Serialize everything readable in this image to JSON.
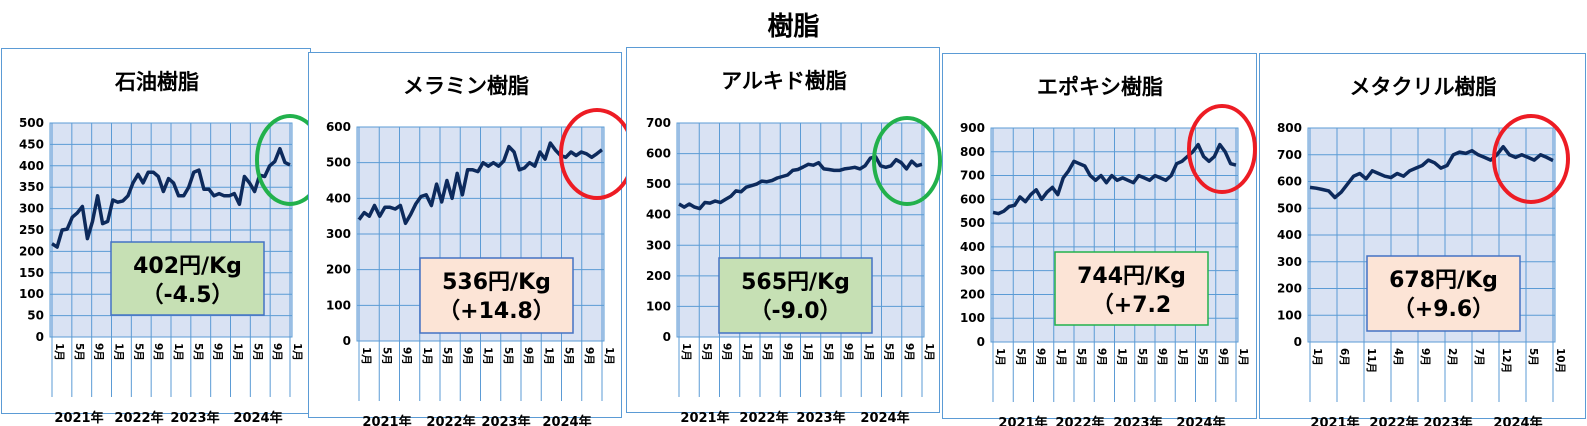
{
  "page_title": "樹脂",
  "colors": {
    "plot_bg": "#d9e2f3",
    "grid": "#5b9bd5",
    "line": "#0d2a5c",
    "green": "#22b14c",
    "red": "#ed1c24",
    "box_green": "#c6e0b4",
    "box_orange": "#fce4d6"
  },
  "chart_data": [
    {
      "type": "line",
      "title": "石油樹脂",
      "ylim": [
        0,
        500
      ],
      "yticks": [
        0,
        50,
        100,
        150,
        200,
        250,
        300,
        350,
        400,
        450,
        500
      ],
      "month_labels": [
        "1月",
        "5月",
        "9月",
        "1月",
        "5月",
        "9月",
        "1月",
        "5月",
        "9月",
        "1月",
        "5月",
        "9月",
        "1月"
      ],
      "year_labels": [
        "2021年",
        "2022年",
        "2023年",
        "2024年"
      ],
      "series": [
        {
          "values": [
            218,
            210,
            250,
            252,
            280,
            290,
            305,
            230,
            270,
            330,
            265,
            270,
            320,
            315,
            318,
            330,
            360,
            380,
            360,
            385,
            385,
            375,
            340,
            370,
            360,
            330,
            330,
            350,
            385,
            390,
            345,
            345,
            330,
            335,
            330,
            330,
            335,
            310,
            375,
            360,
            340,
            378,
            375,
            400,
            410,
            440,
            408,
            402
          ]
        }
      ],
      "price_label": "402円/Kg",
      "change_label": "（-4.5）",
      "box_style": "green",
      "circle": "green"
    },
    {
      "type": "line",
      "title": "メラミン樹脂",
      "ylim": [
        0,
        600
      ],
      "yticks": [
        0,
        100,
        200,
        300,
        400,
        500,
        600
      ],
      "month_labels": [
        "1月",
        "5月",
        "9月",
        "1月",
        "5月",
        "9月",
        "1月",
        "5月",
        "9月",
        "1月",
        "5月",
        "9月",
        "1月"
      ],
      "year_labels": [
        "2021年",
        "2022年",
        "2023年",
        "2024年"
      ],
      "series": [
        {
          "values": [
            340,
            360,
            350,
            380,
            350,
            375,
            375,
            370,
            380,
            330,
            355,
            385,
            405,
            410,
            380,
            440,
            390,
            450,
            400,
            470,
            410,
            480,
            480,
            475,
            500,
            490,
            500,
            490,
            505,
            545,
            530,
            480,
            485,
            500,
            490,
            530,
            510,
            555,
            535,
            520,
            515,
            530,
            520,
            530,
            525,
            515,
            525,
            536
          ]
        }
      ],
      "price_label": "536円/Kg",
      "change_label": "（+14.8）",
      "box_style": "orange",
      "circle": "red"
    },
    {
      "type": "line",
      "title": "アルキド樹脂",
      "ylim": [
        0,
        700
      ],
      "yticks": [
        0,
        100,
        200,
        300,
        400,
        500,
        600,
        700
      ],
      "month_labels": [
        "1月",
        "5月",
        "9月",
        "1月",
        "5月",
        "9月",
        "1月",
        "5月",
        "9月",
        "1月",
        "5月",
        "9月",
        "1月"
      ],
      "year_labels": [
        "2021年",
        "2022年",
        "2023年",
        "2024年"
      ],
      "series": [
        {
          "values": [
            435,
            425,
            435,
            425,
            420,
            440,
            438,
            445,
            440,
            450,
            460,
            478,
            475,
            490,
            495,
            500,
            510,
            508,
            512,
            520,
            525,
            530,
            545,
            548,
            556,
            565,
            562,
            570,
            550,
            548,
            545,
            545,
            550,
            552,
            555,
            550,
            560,
            585,
            590,
            560,
            555,
            560,
            580,
            570,
            550,
            575,
            560,
            565
          ]
        }
      ],
      "price_label": "565円/Kg",
      "change_label": "（-9.0）",
      "box_style": "green",
      "circle": "green"
    },
    {
      "type": "line",
      "title": "エポキシ樹脂",
      "ylim": [
        0,
        900
      ],
      "yticks": [
        0,
        100,
        200,
        300,
        400,
        500,
        600,
        700,
        800,
        900
      ],
      "month_labels": [
        "1月",
        "5月",
        "9月",
        "1月",
        "5月",
        "9月",
        "1月",
        "5月",
        "9月",
        "1月",
        "5月",
        "9月",
        "1月"
      ],
      "year_labels": [
        "2021年",
        "2022年",
        "2023年",
        "2024年"
      ],
      "series": [
        {
          "values": [
            545,
            540,
            550,
            570,
            575,
            610,
            590,
            620,
            640,
            600,
            630,
            650,
            620,
            690,
            720,
            760,
            750,
            740,
            700,
            680,
            700,
            670,
            700,
            680,
            690,
            680,
            670,
            700,
            690,
            680,
            700,
            690,
            680,
            700,
            750,
            760,
            780,
            800,
            830,
            780,
            760,
            780,
            830,
            800,
            750,
            744
          ]
        }
      ],
      "price_label": "744円/Kg",
      "change_label": "（+7.2",
      "box_style": "orange",
      "circle": "red"
    },
    {
      "type": "line",
      "title": "メタクリル樹脂",
      "ylim": [
        0,
        800
      ],
      "yticks": [
        0,
        100,
        200,
        300,
        400,
        500,
        600,
        700,
        800
      ],
      "month_labels": [
        "1月",
        "6月",
        "11月",
        "4月",
        "9月",
        "2月",
        "7月",
        "12月",
        "5月",
        "10月"
      ],
      "year_labels": [
        "2021年",
        "2022年",
        "2023年",
        "2024年"
      ],
      "series": [
        {
          "values": [
            578,
            575,
            570,
            565,
            540,
            560,
            590,
            620,
            630,
            610,
            640,
            630,
            620,
            615,
            630,
            620,
            640,
            650,
            660,
            680,
            670,
            650,
            660,
            700,
            710,
            705,
            715,
            700,
            690,
            680,
            700,
            730,
            700,
            690,
            700,
            690,
            680,
            700,
            690,
            678
          ]
        }
      ],
      "price_label": "678円/Kg",
      "change_label": "（+9.6）",
      "box_style": "orange",
      "circle": "red"
    }
  ]
}
